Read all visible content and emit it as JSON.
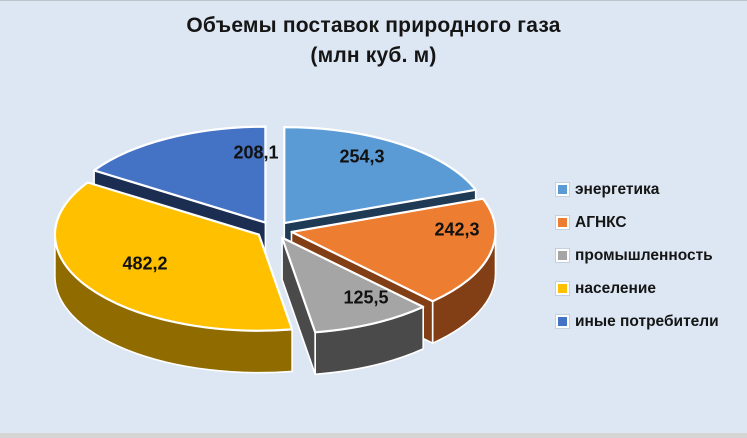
{
  "window": {
    "background": "#dce7f3"
  },
  "title": {
    "line1": "Объемы поставок природного газа",
    "line2": "(млн куб. м)"
  },
  "chart_data": {
    "type": "pie",
    "style": "3d-exploded",
    "title": "Объемы поставок природного газа (млн куб. м)",
    "unit": "млн куб. м",
    "start_angle_deg": 0,
    "direction": "clockwise",
    "legend_position": "right",
    "series": [
      {
        "name": "энергетика",
        "value": 254.3,
        "label": "254,3",
        "color": "#5B9BD5",
        "side_color": "#1F3A55"
      },
      {
        "name": "АГНКС",
        "value": 242.3,
        "label": "242,3",
        "color": "#ED7D31",
        "side_color": "#823E14"
      },
      {
        "name": "промышленность",
        "value": 125.5,
        "label": "125,5",
        "color": "#A5A5A5",
        "side_color": "#4A4A4A"
      },
      {
        "name": "население",
        "value": 482.2,
        "label": "482,2",
        "color": "#FFC000",
        "side_color": "#8F6B00"
      },
      {
        "name": "иные потребители",
        "value": 208.1,
        "label": "208,1",
        "color": "#4472C4",
        "side_color": "#1B2E52"
      }
    ]
  }
}
